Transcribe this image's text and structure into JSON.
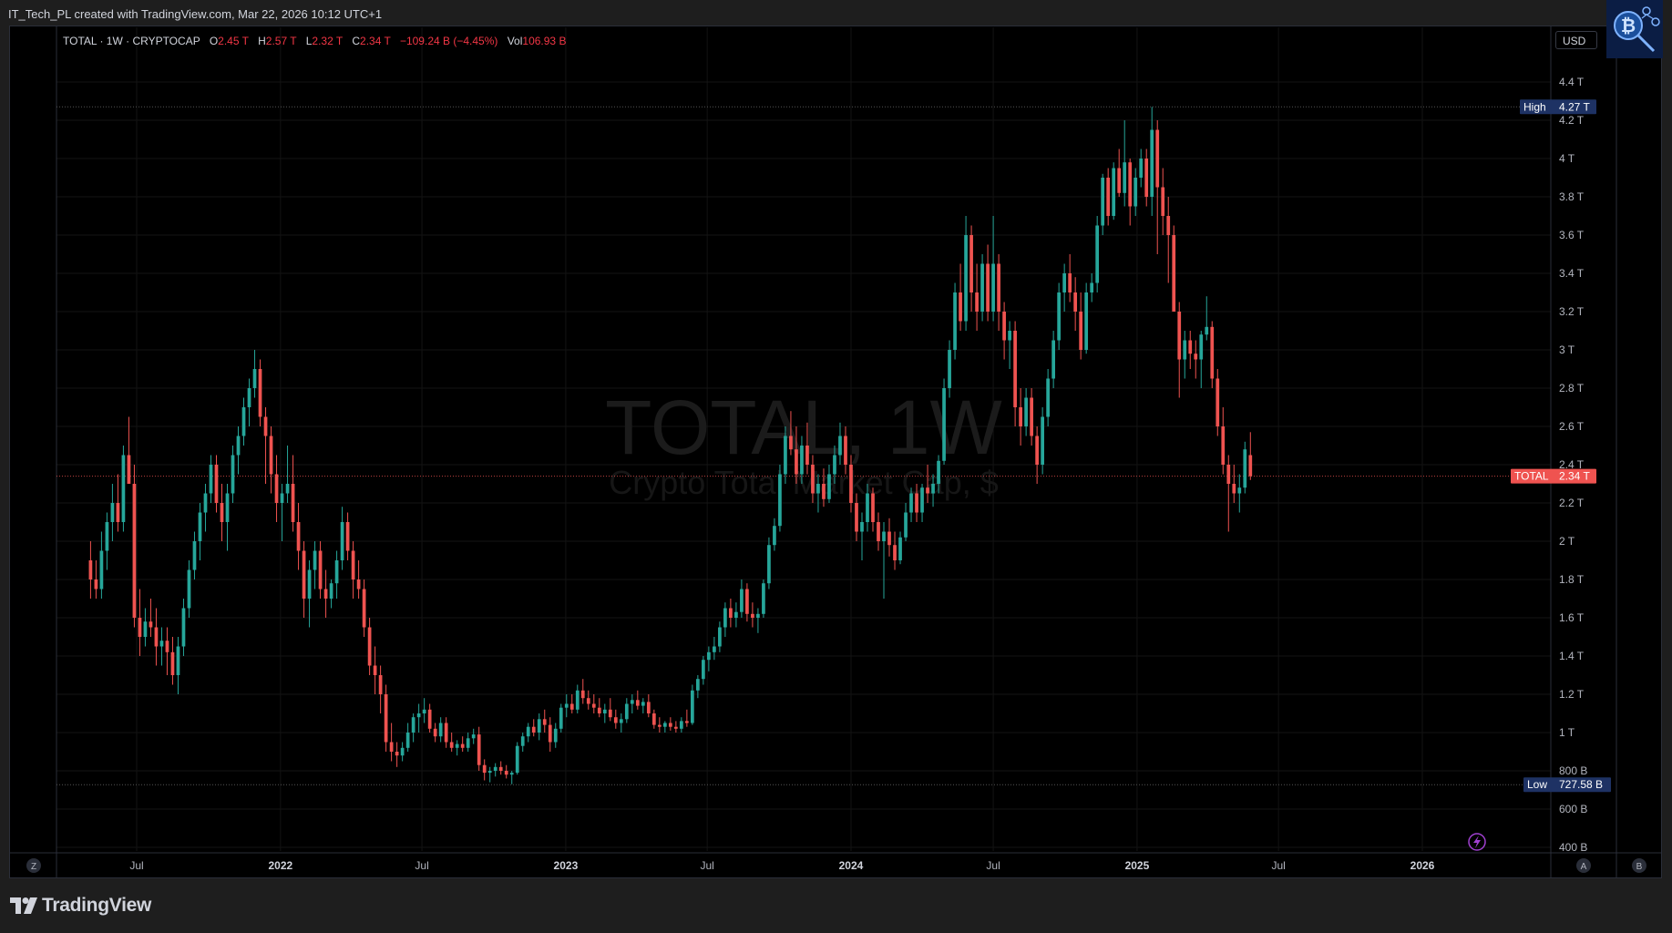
{
  "header": {
    "author_line": "IT_Tech_PL created with TradingView.com, Mar 22, 2026 10:12 UTC+1"
  },
  "legend": {
    "symbol": "TOTAL · 1W · CRYPTOCAP",
    "o_label": "O",
    "o_value": "2.45 T",
    "h_label": "H",
    "h_value": "2.57 T",
    "l_label": "L",
    "l_value": "2.32 T",
    "c_label": "C",
    "c_value": "2.34 T",
    "change": "−109.24 B (−4.45%)",
    "vol_label": "Vol",
    "vol_value": "106.93 B"
  },
  "currency_button": "USD",
  "watermark": {
    "title": "TOTAL, 1W",
    "subtitle": "Crypto Total Market Cap, $"
  },
  "markers": {
    "high_label": "High",
    "high_value": "4.27 T",
    "low_label": "Low",
    "low_value": "727.58 B",
    "last_label": "TOTAL",
    "last_value": "2.34 T"
  },
  "axis_buttons": {
    "left": "Z",
    "auto": "A",
    "log": "B"
  },
  "footer": {
    "brand": "TradingView"
  },
  "colors": {
    "up": "#26a69a",
    "down": "#ef5350",
    "background": "#000000",
    "high_low_badge": "#1e3264",
    "last_price_badge": "#ef5350"
  },
  "chart_data": {
    "type": "candlestick",
    "title": "TOTAL, 1W",
    "subtitle": "Crypto Total Market Cap, $",
    "unit": "USD",
    "interval": "1W",
    "y_ticks": [
      "4.4 T",
      "4.2 T",
      "4 T",
      "3.8 T",
      "3.6 T",
      "3.4 T",
      "3.2 T",
      "3 T",
      "2.8 T",
      "2.6 T",
      "2.4 T",
      "2.2 T",
      "2 T",
      "1.8 T",
      "1.6 T",
      "1.4 T",
      "1.2 T",
      "1 T",
      "800 B",
      "600 B",
      "400 B"
    ],
    "y_tick_values": [
      4.4,
      4.2,
      4.0,
      3.8,
      3.6,
      3.4,
      3.2,
      3.0,
      2.8,
      2.6,
      2.4,
      2.2,
      2.0,
      1.8,
      1.6,
      1.4,
      1.2,
      1.0,
      0.8,
      0.6,
      0.4
    ],
    "x_ticks": [
      {
        "label": "Jul",
        "date": "2021-07-01",
        "year": false
      },
      {
        "label": "2022",
        "date": "2022-01-01",
        "year": true
      },
      {
        "label": "Jul",
        "date": "2022-07-01",
        "year": false
      },
      {
        "label": "2023",
        "date": "2023-01-01",
        "year": true
      },
      {
        "label": "Jul",
        "date": "2023-07-01",
        "year": false
      },
      {
        "label": "2024",
        "date": "2024-01-01",
        "year": true
      },
      {
        "label": "Jul",
        "date": "2024-07-01",
        "year": false
      },
      {
        "label": "2025",
        "date": "2025-01-01",
        "year": true
      },
      {
        "label": "Jul",
        "date": "2025-07-01",
        "year": false
      },
      {
        "label": "2026",
        "date": "2026-01-01",
        "year": true
      }
    ],
    "ylim": [
      0.4,
      4.4
    ],
    "high": 4.27,
    "low": 0.72758,
    "last": 2.34,
    "start_date": "2021-05-03",
    "ohlc_weekly": [
      [
        1.9,
        2.0,
        1.7,
        1.8
      ],
      [
        1.8,
        1.9,
        1.7,
        1.75
      ],
      [
        1.75,
        2.05,
        1.7,
        1.95
      ],
      [
        1.95,
        2.15,
        1.85,
        2.1
      ],
      [
        2.1,
        2.3,
        2.0,
        2.2
      ],
      [
        2.2,
        2.35,
        2.05,
        2.1
      ],
      [
        2.1,
        2.5,
        2.05,
        2.45
      ],
      [
        2.45,
        2.65,
        2.3,
        2.3
      ],
      [
        2.3,
        2.4,
        1.55,
        1.6
      ],
      [
        1.6,
        1.75,
        1.4,
        1.5
      ],
      [
        1.5,
        1.65,
        1.45,
        1.58
      ],
      [
        1.58,
        1.7,
        1.5,
        1.55
      ],
      [
        1.55,
        1.65,
        1.35,
        1.45
      ],
      [
        1.45,
        1.55,
        1.35,
        1.48
      ],
      [
        1.48,
        1.55,
        1.3,
        1.42
      ],
      [
        1.42,
        1.5,
        1.25,
        1.3
      ],
      [
        1.3,
        1.5,
        1.2,
        1.45
      ],
      [
        1.45,
        1.7,
        1.4,
        1.65
      ],
      [
        1.65,
        1.9,
        1.6,
        1.85
      ],
      [
        1.85,
        2.05,
        1.8,
        2.0
      ],
      [
        2.0,
        2.2,
        1.9,
        2.15
      ],
      [
        2.15,
        2.3,
        2.05,
        2.25
      ],
      [
        2.25,
        2.45,
        2.2,
        2.4
      ],
      [
        2.4,
        2.45,
        2.15,
        2.2
      ],
      [
        2.2,
        2.3,
        2.0,
        2.1
      ],
      [
        2.1,
        2.3,
        1.95,
        2.25
      ],
      [
        2.25,
        2.5,
        2.2,
        2.45
      ],
      [
        2.45,
        2.6,
        2.35,
        2.55
      ],
      [
        2.55,
        2.75,
        2.5,
        2.7
      ],
      [
        2.7,
        2.85,
        2.6,
        2.8
      ],
      [
        2.8,
        3.0,
        2.75,
        2.9
      ],
      [
        2.9,
        2.95,
        2.6,
        2.65
      ],
      [
        2.65,
        2.7,
        2.3,
        2.55
      ],
      [
        2.55,
        2.6,
        2.25,
        2.35
      ],
      [
        2.35,
        2.45,
        2.1,
        2.2
      ],
      [
        2.2,
        2.3,
        2.0,
        2.25
      ],
      [
        2.25,
        2.5,
        2.2,
        2.3
      ],
      [
        2.3,
        2.45,
        2.05,
        2.1
      ],
      [
        2.1,
        2.2,
        1.85,
        1.95
      ],
      [
        1.95,
        2.0,
        1.6,
        1.7
      ],
      [
        1.7,
        1.9,
        1.55,
        1.85
      ],
      [
        1.85,
        2.0,
        1.75,
        1.95
      ],
      [
        1.95,
        2.0,
        1.7,
        1.75
      ],
      [
        1.75,
        1.85,
        1.6,
        1.7
      ],
      [
        1.7,
        1.8,
        1.65,
        1.78
      ],
      [
        1.78,
        1.95,
        1.7,
        1.9
      ],
      [
        1.9,
        2.18,
        1.85,
        2.1
      ],
      [
        2.1,
        2.15,
        1.9,
        1.95
      ],
      [
        1.95,
        2.0,
        1.7,
        1.8
      ],
      [
        1.8,
        1.9,
        1.7,
        1.75
      ],
      [
        1.75,
        1.8,
        1.5,
        1.55
      ],
      [
        1.55,
        1.6,
        1.3,
        1.35
      ],
      [
        1.35,
        1.45,
        1.2,
        1.3
      ],
      [
        1.3,
        1.35,
        1.1,
        1.2
      ],
      [
        1.2,
        1.25,
        0.9,
        0.95
      ],
      [
        0.95,
        1.05,
        0.85,
        0.9
      ],
      [
        0.9,
        0.95,
        0.82,
        0.88
      ],
      [
        0.88,
        0.95,
        0.85,
        0.92
      ],
      [
        0.92,
        1.05,
        0.9,
        1.0
      ],
      [
        1.0,
        1.1,
        0.95,
        1.08
      ],
      [
        1.08,
        1.15,
        1.0,
        1.1
      ],
      [
        1.1,
        1.18,
        1.05,
        1.12
      ],
      [
        1.12,
        1.15,
        1.0,
        1.02
      ],
      [
        1.02,
        1.05,
        0.95,
        0.98
      ],
      [
        0.98,
        1.08,
        0.95,
        1.05
      ],
      [
        1.05,
        1.08,
        0.92,
        0.95
      ],
      [
        0.95,
        1.0,
        0.9,
        0.92
      ],
      [
        0.92,
        0.96,
        0.88,
        0.94
      ],
      [
        0.94,
        0.98,
        0.9,
        0.92
      ],
      [
        0.92,
        1.0,
        0.9,
        0.97
      ],
      [
        0.97,
        1.02,
        0.94,
        0.99
      ],
      [
        0.99,
        1.03,
        0.8,
        0.83
      ],
      [
        0.83,
        0.86,
        0.75,
        0.79
      ],
      [
        0.79,
        0.82,
        0.74,
        0.8
      ],
      [
        0.8,
        0.84,
        0.77,
        0.82
      ],
      [
        0.82,
        0.85,
        0.78,
        0.8
      ],
      [
        0.8,
        0.83,
        0.76,
        0.78
      ],
      [
        0.78,
        0.8,
        0.73,
        0.79
      ],
      [
        0.79,
        0.95,
        0.78,
        0.93
      ],
      [
        0.93,
        1.0,
        0.9,
        0.98
      ],
      [
        0.98,
        1.05,
        0.95,
        1.03
      ],
      [
        1.03,
        1.07,
        0.98,
        1.0
      ],
      [
        1.0,
        1.1,
        0.96,
        1.07
      ],
      [
        1.07,
        1.12,
        1.0,
        1.04
      ],
      [
        1.04,
        1.08,
        0.9,
        0.95
      ],
      [
        0.95,
        1.05,
        0.92,
        1.02
      ],
      [
        1.02,
        1.15,
        1.0,
        1.13
      ],
      [
        1.13,
        1.2,
        1.08,
        1.15
      ],
      [
        1.15,
        1.2,
        1.1,
        1.12
      ],
      [
        1.12,
        1.25,
        1.1,
        1.22
      ],
      [
        1.22,
        1.28,
        1.15,
        1.18
      ],
      [
        1.18,
        1.22,
        1.12,
        1.15
      ],
      [
        1.15,
        1.2,
        1.1,
        1.13
      ],
      [
        1.13,
        1.18,
        1.08,
        1.1
      ],
      [
        1.1,
        1.15,
        1.05,
        1.12
      ],
      [
        1.12,
        1.18,
        1.06,
        1.08
      ],
      [
        1.08,
        1.12,
        1.02,
        1.05
      ],
      [
        1.05,
        1.1,
        1.0,
        1.07
      ],
      [
        1.07,
        1.18,
        1.05,
        1.15
      ],
      [
        1.15,
        1.2,
        1.1,
        1.17
      ],
      [
        1.17,
        1.22,
        1.12,
        1.14
      ],
      [
        1.14,
        1.18,
        1.1,
        1.16
      ],
      [
        1.16,
        1.2,
        1.08,
        1.1
      ],
      [
        1.1,
        1.12,
        1.02,
        1.04
      ],
      [
        1.04,
        1.08,
        1.0,
        1.03
      ],
      [
        1.03,
        1.06,
        1.0,
        1.05
      ],
      [
        1.05,
        1.08,
        1.01,
        1.03
      ],
      [
        1.03,
        1.06,
        1.0,
        1.02
      ],
      [
        1.02,
        1.08,
        1.0,
        1.06
      ],
      [
        1.06,
        1.12,
        1.03,
        1.05
      ],
      [
        1.05,
        1.25,
        1.04,
        1.22
      ],
      [
        1.22,
        1.3,
        1.18,
        1.28
      ],
      [
        1.28,
        1.4,
        1.25,
        1.38
      ],
      [
        1.38,
        1.45,
        1.32,
        1.42
      ],
      [
        1.42,
        1.5,
        1.38,
        1.45
      ],
      [
        1.45,
        1.58,
        1.42,
        1.55
      ],
      [
        1.55,
        1.68,
        1.5,
        1.65
      ],
      [
        1.65,
        1.7,
        1.55,
        1.6
      ],
      [
        1.6,
        1.68,
        1.55,
        1.63
      ],
      [
        1.63,
        1.8,
        1.6,
        1.75
      ],
      [
        1.75,
        1.78,
        1.58,
        1.62
      ],
      [
        1.62,
        1.68,
        1.55,
        1.6
      ],
      [
        1.6,
        1.65,
        1.52,
        1.62
      ],
      [
        1.62,
        1.8,
        1.6,
        1.78
      ],
      [
        1.78,
        2.02,
        1.75,
        1.98
      ],
      [
        1.98,
        2.12,
        1.95,
        2.08
      ],
      [
        2.08,
        2.4,
        2.05,
        2.35
      ],
      [
        2.35,
        2.6,
        2.3,
        2.55
      ],
      [
        2.55,
        2.68,
        2.45,
        2.48
      ],
      [
        2.48,
        2.6,
        2.3,
        2.35
      ],
      [
        2.35,
        2.55,
        2.3,
        2.5
      ],
      [
        2.5,
        2.62,
        2.35,
        2.4
      ],
      [
        2.4,
        2.45,
        2.2,
        2.25
      ],
      [
        2.25,
        2.35,
        2.15,
        2.3
      ],
      [
        2.3,
        2.38,
        2.18,
        2.22
      ],
      [
        2.22,
        2.4,
        2.2,
        2.35
      ],
      [
        2.35,
        2.5,
        2.3,
        2.45
      ],
      [
        2.45,
        2.62,
        2.4,
        2.55
      ],
      [
        2.55,
        2.6,
        2.35,
        2.4
      ],
      [
        2.4,
        2.45,
        2.15,
        2.2
      ],
      [
        2.2,
        2.25,
        2.0,
        2.05
      ],
      [
        2.05,
        2.15,
        1.9,
        2.1
      ],
      [
        2.1,
        2.3,
        2.05,
        2.25
      ],
      [
        2.25,
        2.28,
        2.05,
        2.1
      ],
      [
        2.1,
        2.15,
        1.95,
        2.0
      ],
      [
        2.0,
        2.1,
        1.7,
        2.05
      ],
      [
        2.05,
        2.12,
        1.92,
        1.98
      ],
      [
        1.98,
        2.05,
        1.85,
        1.9
      ],
      [
        1.9,
        2.05,
        1.88,
        2.02
      ],
      [
        2.02,
        2.2,
        2.0,
        2.15
      ],
      [
        2.15,
        2.28,
        2.1,
        2.25
      ],
      [
        2.25,
        2.3,
        2.1,
        2.15
      ],
      [
        2.15,
        2.3,
        2.1,
        2.28
      ],
      [
        2.28,
        2.4,
        2.2,
        2.25
      ],
      [
        2.25,
        2.35,
        2.18,
        2.3
      ],
      [
        2.3,
        2.45,
        2.25,
        2.42
      ],
      [
        2.42,
        2.85,
        2.4,
        2.8
      ],
      [
        2.8,
        3.05,
        2.75,
        3.0
      ],
      [
        3.0,
        3.35,
        2.95,
        3.3
      ],
      [
        3.3,
        3.45,
        3.1,
        3.15
      ],
      [
        3.15,
        3.7,
        3.1,
        3.6
      ],
      [
        3.6,
        3.65,
        3.2,
        3.3
      ],
      [
        3.3,
        3.45,
        3.1,
        3.2
      ],
      [
        3.2,
        3.5,
        3.15,
        3.45
      ],
      [
        3.45,
        3.55,
        3.15,
        3.2
      ],
      [
        3.2,
        3.7,
        3.15,
        3.45
      ],
      [
        3.45,
        3.5,
        3.1,
        3.2
      ],
      [
        3.2,
        3.25,
        2.95,
        3.05
      ],
      [
        3.05,
        3.15,
        2.9,
        3.1
      ],
      [
        3.1,
        3.15,
        2.6,
        2.7
      ],
      [
        2.7,
        2.8,
        2.5,
        2.6
      ],
      [
        2.6,
        2.8,
        2.55,
        2.75
      ],
      [
        2.75,
        2.8,
        2.5,
        2.55
      ],
      [
        2.55,
        2.6,
        2.3,
        2.4
      ],
      [
        2.4,
        2.7,
        2.35,
        2.65
      ],
      [
        2.65,
        2.9,
        2.6,
        2.85
      ],
      [
        2.85,
        3.1,
        2.8,
        3.05
      ],
      [
        3.05,
        3.35,
        3.0,
        3.3
      ],
      [
        3.3,
        3.45,
        3.2,
        3.4
      ],
      [
        3.4,
        3.5,
        3.25,
        3.3
      ],
      [
        3.3,
        3.38,
        3.1,
        3.2
      ],
      [
        3.2,
        3.3,
        2.95,
        3.0
      ],
      [
        3.0,
        3.35,
        2.98,
        3.3
      ],
      [
        3.3,
        3.4,
        3.25,
        3.35
      ],
      [
        3.35,
        3.7,
        3.3,
        3.65
      ],
      [
        3.65,
        3.92,
        3.6,
        3.9
      ],
      [
        3.9,
        3.95,
        3.65,
        3.7
      ],
      [
        3.7,
        3.98,
        3.68,
        3.95
      ],
      [
        3.95,
        4.05,
        3.8,
        3.82
      ],
      [
        3.82,
        4.2,
        3.75,
        3.98
      ],
      [
        3.98,
        4.0,
        3.65,
        3.75
      ],
      [
        3.75,
        3.95,
        3.7,
        3.9
      ],
      [
        3.9,
        4.05,
        3.85,
        4.0
      ],
      [
        4.0,
        4.05,
        3.75,
        3.8
      ],
      [
        3.8,
        4.27,
        3.7,
        4.15
      ],
      [
        4.15,
        4.2,
        3.5,
        3.85
      ],
      [
        3.85,
        3.95,
        3.6,
        3.7
      ],
      [
        3.7,
        3.8,
        3.35,
        3.6
      ],
      [
        3.6,
        3.65,
        3.2,
        3.2
      ],
      [
        3.2,
        3.25,
        2.75,
        2.95
      ],
      [
        2.95,
        3.1,
        2.85,
        3.05
      ],
      [
        3.05,
        3.1,
        2.9,
        2.98
      ],
      [
        2.98,
        3.05,
        2.85,
        2.95
      ],
      [
        2.95,
        3.1,
        2.8,
        3.08
      ],
      [
        3.08,
        3.28,
        3.05,
        3.12
      ],
      [
        3.12,
        3.15,
        2.8,
        2.85
      ],
      [
        2.85,
        2.9,
        2.55,
        2.6
      ],
      [
        2.6,
        2.7,
        2.35,
        2.4
      ],
      [
        2.4,
        2.45,
        2.05,
        2.3
      ],
      [
        2.3,
        2.4,
        2.2,
        2.25
      ],
      [
        2.25,
        2.35,
        2.15,
        2.28
      ],
      [
        2.28,
        2.52,
        2.25,
        2.48
      ],
      [
        2.45,
        2.57,
        2.32,
        2.34
      ]
    ]
  }
}
